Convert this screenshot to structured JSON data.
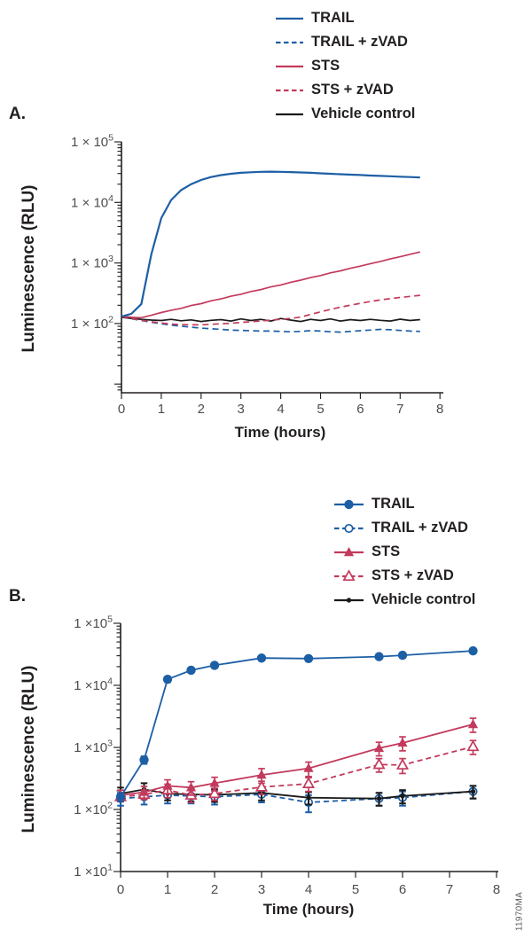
{
  "figure_id": "11970MA",
  "colors": {
    "blue": "#1d5fa5",
    "red": "#c23a5c",
    "black": "#1a1a1a",
    "axis": "#231f20",
    "tick_text": "#4d4d4f"
  },
  "panels": [
    {
      "label": "A.",
      "x_ticks": [
        "0",
        "1",
        "2",
        "3",
        "4",
        "5",
        "6",
        "7",
        "8"
      ],
      "y_ticks": [
        {
          "base": "1 × 10",
          "exp": 5
        },
        {
          "base": "1 × 10",
          "exp": 4
        },
        {
          "base": "1 × 10",
          "exp": 3
        },
        {
          "base": "1 × 10",
          "exp": 2
        }
      ]
    },
    {
      "label": "B.",
      "x_ticks": [
        "0",
        "1",
        "2",
        "3",
        "4",
        "5",
        "6",
        "7",
        "8"
      ],
      "y_ticks": [
        {
          "base": "1 ×10",
          "exp": 5
        },
        {
          "base": "1 ×10",
          "exp": 4
        },
        {
          "base": "1 ×10",
          "exp": 3
        },
        {
          "base": "1 ×10",
          "exp": 2
        },
        {
          "base": "1 ×10",
          "exp": 1
        }
      ]
    }
  ],
  "chart_data": [
    {
      "type": "line",
      "y_scale": "log",
      "x_label": "Time (hours)",
      "y_label": "Luminescence (RLU)",
      "x_range": [
        0,
        8
      ],
      "y_range": [
        7,
        100000
      ],
      "legend_position": "top-right",
      "x": [
        0,
        0.25,
        0.5,
        0.75,
        1,
        1.25,
        1.5,
        1.75,
        2,
        2.25,
        2.5,
        2.75,
        3,
        3.25,
        3.5,
        3.75,
        4,
        4.25,
        4.5,
        4.75,
        5,
        5.25,
        5.5,
        5.75,
        6,
        6.25,
        6.5,
        6.75,
        7,
        7.25,
        7.5
      ],
      "series": [
        {
          "name": "TRAIL",
          "color": "blue",
          "line": "solid",
          "marker": "none",
          "values": [
            130,
            145,
            210,
            1400,
            5500,
            11000,
            16000,
            20000,
            23500,
            26200,
            28200,
            29700,
            30800,
            31500,
            32000,
            32200,
            32000,
            31700,
            31300,
            30800,
            30200,
            29700,
            29200,
            28700,
            28300,
            27800,
            27400,
            27000,
            26600,
            26200,
            25800
          ]
        },
        {
          "name": "TRAIL + zVAD",
          "color": "blue",
          "line": "dashed",
          "marker": "none",
          "values": [
            128,
            120,
            112,
            105,
            99,
            94,
            90,
            87,
            84,
            82,
            80,
            78,
            77,
            76,
            75,
            75,
            74,
            73,
            74,
            76,
            75,
            73,
            72,
            74,
            76,
            78,
            80,
            79,
            77,
            75,
            74
          ]
        },
        {
          "name": "STS",
          "color": "red",
          "line": "solid",
          "marker": "none",
          "values": [
            132,
            127,
            125,
            137,
            152,
            166,
            178,
            198,
            213,
            237,
            255,
            282,
            304,
            338,
            362,
            402,
            434,
            480,
            520,
            574,
            620,
            685,
            742,
            818,
            886,
            975,
            1060,
            1165,
            1268,
            1390,
            1520
          ]
        },
        {
          "name": "STS + zVAD",
          "color": "red",
          "line": "dashed",
          "marker": "none",
          "values": [
            130,
            121,
            113,
            107,
            102,
            98,
            96,
            95,
            95,
            97,
            99,
            101,
            104,
            107,
            110,
            114,
            117,
            121,
            128,
            141,
            156,
            171,
            186,
            201,
            216,
            231,
            245,
            258,
            269,
            281,
            292
          ]
        },
        {
          "name": "Vehicle control",
          "color": "black",
          "line": "solid",
          "marker": "none",
          "values": [
            127,
            121,
            117,
            114,
            112,
            117,
            111,
            115,
            108,
            113,
            116,
            110,
            119,
            112,
            117,
            110,
            121,
            114,
            108,
            117,
            112,
            119,
            110,
            116,
            112,
            117,
            113,
            110,
            118,
            112,
            116
          ]
        }
      ]
    },
    {
      "type": "line",
      "y_scale": "log",
      "x_label": "Time (hours)",
      "y_label": "Luminescence (RLU)",
      "x_range": [
        0,
        8
      ],
      "y_range": [
        10,
        100000
      ],
      "legend_position": "top-right",
      "x": [
        0,
        0.5,
        1,
        1.5,
        2,
        3,
        4,
        5.5,
        6,
        7.5
      ],
      "series": [
        {
          "name": "TRAIL",
          "color": "blue",
          "line": "solid",
          "marker": "circle",
          "values": [
            160,
            630,
            12500,
            17500,
            21000,
            27500,
            27000,
            29000,
            30500,
            36000
          ],
          "yerr": [
            25,
            90,
            1300,
            1600,
            1900,
            2300,
            2300,
            2600,
            2600,
            3200
          ]
        },
        {
          "name": "TRAIL + zVAD",
          "color": "blue",
          "line": "dashed",
          "marker": "circle-open",
          "values": [
            150,
            160,
            170,
            165,
            160,
            175,
            130,
            150,
            155,
            195
          ],
          "yerr": [
            35,
            40,
            45,
            40,
            40,
            45,
            40,
            35,
            40,
            45
          ]
        },
        {
          "name": "STS",
          "color": "red",
          "line": "solid",
          "marker": "triangle",
          "values": [
            170,
            190,
            240,
            225,
            265,
            360,
            460,
            970,
            1180,
            2350
          ],
          "yerr": [
            35,
            45,
            60,
            55,
            65,
            95,
            120,
            240,
            300,
            600
          ]
        },
        {
          "name": "STS + zVAD",
          "color": "red",
          "line": "dashed",
          "marker": "triangle-open",
          "values": [
            160,
            175,
            205,
            170,
            180,
            230,
            260,
            530,
            520,
            1030
          ],
          "yerr": [
            25,
            30,
            50,
            40,
            40,
            55,
            65,
            130,
            140,
            260
          ]
        },
        {
          "name": "Vehicle control",
          "color": "black",
          "line": "solid",
          "marker": "dot",
          "values": [
            180,
            210,
            180,
            175,
            172,
            185,
            155,
            150,
            165,
            195
          ],
          "yerr": [
            45,
            55,
            40,
            40,
            40,
            45,
            35,
            35,
            40,
            45
          ]
        }
      ]
    }
  ]
}
